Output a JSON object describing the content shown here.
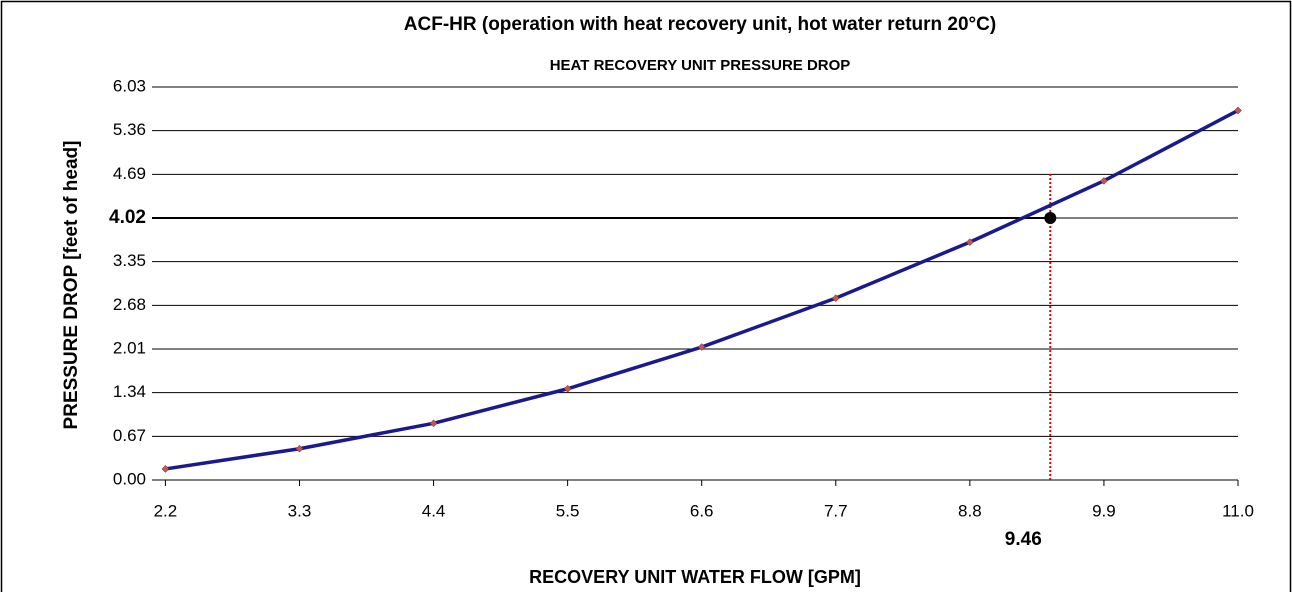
{
  "chart_data": {
    "type": "line",
    "title": "ACF-HR (operation with heat recovery unit, hot water return 20°C)",
    "subtitle": "HEAT RECOVERY UNIT PRESSURE DROP",
    "x_label": "RECOVERY UNIT WATER FLOW   [GPM]",
    "y_label": "PRESSURE DROP  [feet of head]",
    "x": [
      2.2,
      3.3,
      4.4,
      5.5,
      6.6,
      7.7,
      8.8,
      9.9,
      11
    ],
    "series": [
      {
        "color": "#1a1a8c",
        "marker_color": "#c05858",
        "values": [
          0.17,
          0.48,
          0.87,
          1.4,
          2.04,
          2.79,
          3.65,
          4.59,
          5.67
        ]
      }
    ],
    "xlim": [
      2.09,
      11
    ],
    "xticks": [
      2.2,
      3.3,
      4.4,
      5.5,
      6.6,
      7.7,
      8.8,
      9.9,
      {
        "value": 11,
        "label": "11.0"
      }
    ],
    "ylim": [
      0,
      6.03
    ],
    "yticks": [
      {
        "value": 0,
        "label": "0.00"
      },
      0.67,
      1.34,
      2.01,
      2.68,
      3.35,
      4.02,
      4.69,
      5.36,
      6.03
    ],
    "grid": true,
    "highlight": {
      "x": 9.46,
      "y": 4.02
    }
  }
}
